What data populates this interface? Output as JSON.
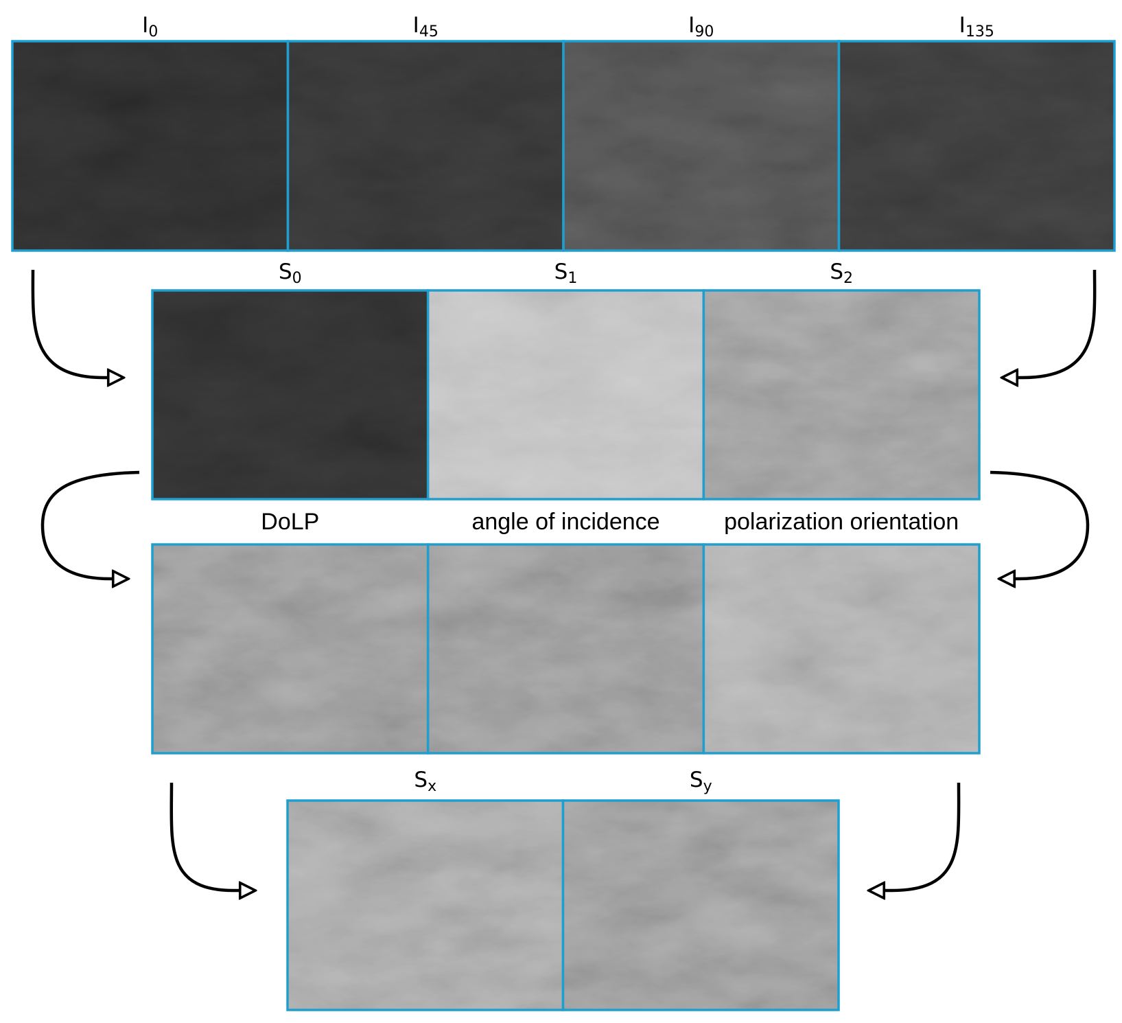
{
  "rows": [
    {
      "panels": [
        {
          "label": {
            "main": "I",
            "sub": "0"
          }
        },
        {
          "label": {
            "main": "I",
            "sub": "45"
          }
        },
        {
          "label": {
            "main": "I",
            "sub": "90"
          }
        },
        {
          "label": {
            "main": "I",
            "sub": "135"
          }
        }
      ]
    },
    {
      "panels": [
        {
          "label": {
            "main": "S",
            "sub": "0"
          }
        },
        {
          "label": {
            "main": "S",
            "sub": "1"
          }
        },
        {
          "label": {
            "main": "S",
            "sub": "2"
          }
        }
      ]
    },
    {
      "panels": [
        {
          "label": {
            "main": "DoLP"
          }
        },
        {
          "label": {
            "main": "angle of incidence"
          }
        },
        {
          "label": {
            "main": "polarization orientation"
          }
        }
      ]
    },
    {
      "panels": [
        {
          "label": {
            "main": "S",
            "sub": "x"
          }
        },
        {
          "label": {
            "main": "S",
            "sub": "y"
          }
        }
      ]
    }
  ]
}
